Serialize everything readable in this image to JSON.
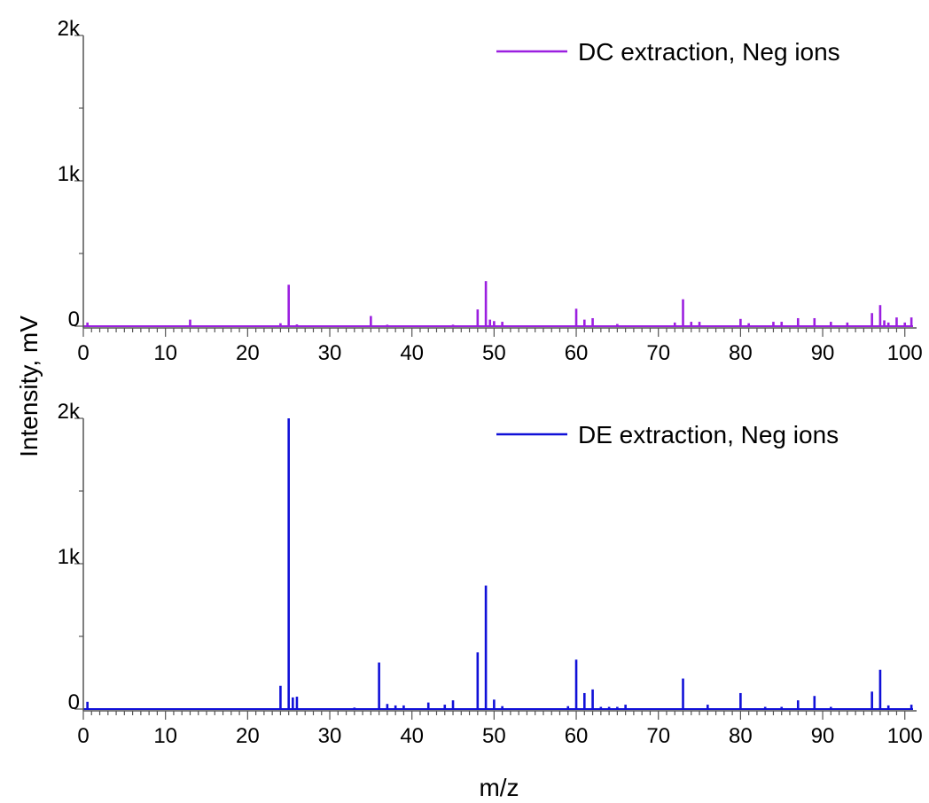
{
  "chart_data": [
    {
      "type": "bar",
      "panel": "top",
      "xlim": [
        0,
        101
      ],
      "ylim": [
        0,
        2000
      ],
      "ytick_labels": [
        "0",
        "1k",
        "2k"
      ],
      "xtick_labels": [
        "0",
        "10",
        "20",
        "30",
        "40",
        "50",
        "60",
        "70",
        "80",
        "90",
        "100"
      ],
      "color": "#9b1fe0",
      "legend_position": "top-right",
      "series": [
        {
          "name": "DC extraction, Neg ions",
          "points": [
            [
              0.5,
              25
            ],
            [
              13,
              45
            ],
            [
              24,
              20
            ],
            [
              25,
              285
            ],
            [
              26,
              12
            ],
            [
              35,
              70
            ],
            [
              37,
              10
            ],
            [
              45,
              10
            ],
            [
              48,
              115
            ],
            [
              49,
              310
            ],
            [
              49.5,
              45
            ],
            [
              50,
              35
            ],
            [
              51,
              30
            ],
            [
              60,
              120
            ],
            [
              61,
              45
            ],
            [
              62,
              55
            ],
            [
              65,
              15
            ],
            [
              72,
              25
            ],
            [
              73,
              185
            ],
            [
              74,
              30
            ],
            [
              75,
              30
            ],
            [
              80,
              50
            ],
            [
              81,
              20
            ],
            [
              84,
              30
            ],
            [
              85,
              30
            ],
            [
              87,
              55
            ],
            [
              89,
              55
            ],
            [
              91,
              30
            ],
            [
              93,
              25
            ],
            [
              96,
              90
            ],
            [
              97,
              145
            ],
            [
              97.5,
              40
            ],
            [
              98,
              25
            ],
            [
              99,
              60
            ],
            [
              100,
              25
            ],
            [
              100.8,
              60
            ]
          ]
        }
      ]
    },
    {
      "type": "bar",
      "panel": "bottom",
      "xlim": [
        0,
        101
      ],
      "ylim": [
        0,
        2000
      ],
      "ytick_labels": [
        "0",
        "1k",
        "2k"
      ],
      "xtick_labels": [
        "0",
        "10",
        "20",
        "30",
        "40",
        "50",
        "60",
        "70",
        "80",
        "90",
        "100"
      ],
      "xlabel": "m/z",
      "color": "#1010d8",
      "legend_position": "top-right",
      "series": [
        {
          "name": "DE extraction, Neg ions",
          "points": [
            [
              0.5,
              50
            ],
            [
              24,
              160
            ],
            [
              25,
              2000
            ],
            [
              25.5,
              80
            ],
            [
              26,
              85
            ],
            [
              33,
              10
            ],
            [
              36,
              320
            ],
            [
              37,
              35
            ],
            [
              38,
              25
            ],
            [
              39,
              25
            ],
            [
              42,
              45
            ],
            [
              44,
              30
            ],
            [
              45,
              60
            ],
            [
              48,
              390
            ],
            [
              49,
              850
            ],
            [
              50,
              65
            ],
            [
              51,
              20
            ],
            [
              59,
              20
            ],
            [
              60,
              340
            ],
            [
              61,
              110
            ],
            [
              62,
              135
            ],
            [
              63,
              15
            ],
            [
              64,
              15
            ],
            [
              65,
              15
            ],
            [
              66,
              30
            ],
            [
              73,
              210
            ],
            [
              76,
              30
            ],
            [
              80,
              110
            ],
            [
              83,
              15
            ],
            [
              85,
              15
            ],
            [
              87,
              60
            ],
            [
              89,
              90
            ],
            [
              91,
              15
            ],
            [
              96,
              120
            ],
            [
              97,
              270
            ],
            [
              98,
              25
            ],
            [
              100.8,
              30
            ]
          ]
        }
      ]
    }
  ],
  "axes": {
    "ylabel": "Intensity, mV",
    "xlabel": "m/z"
  }
}
